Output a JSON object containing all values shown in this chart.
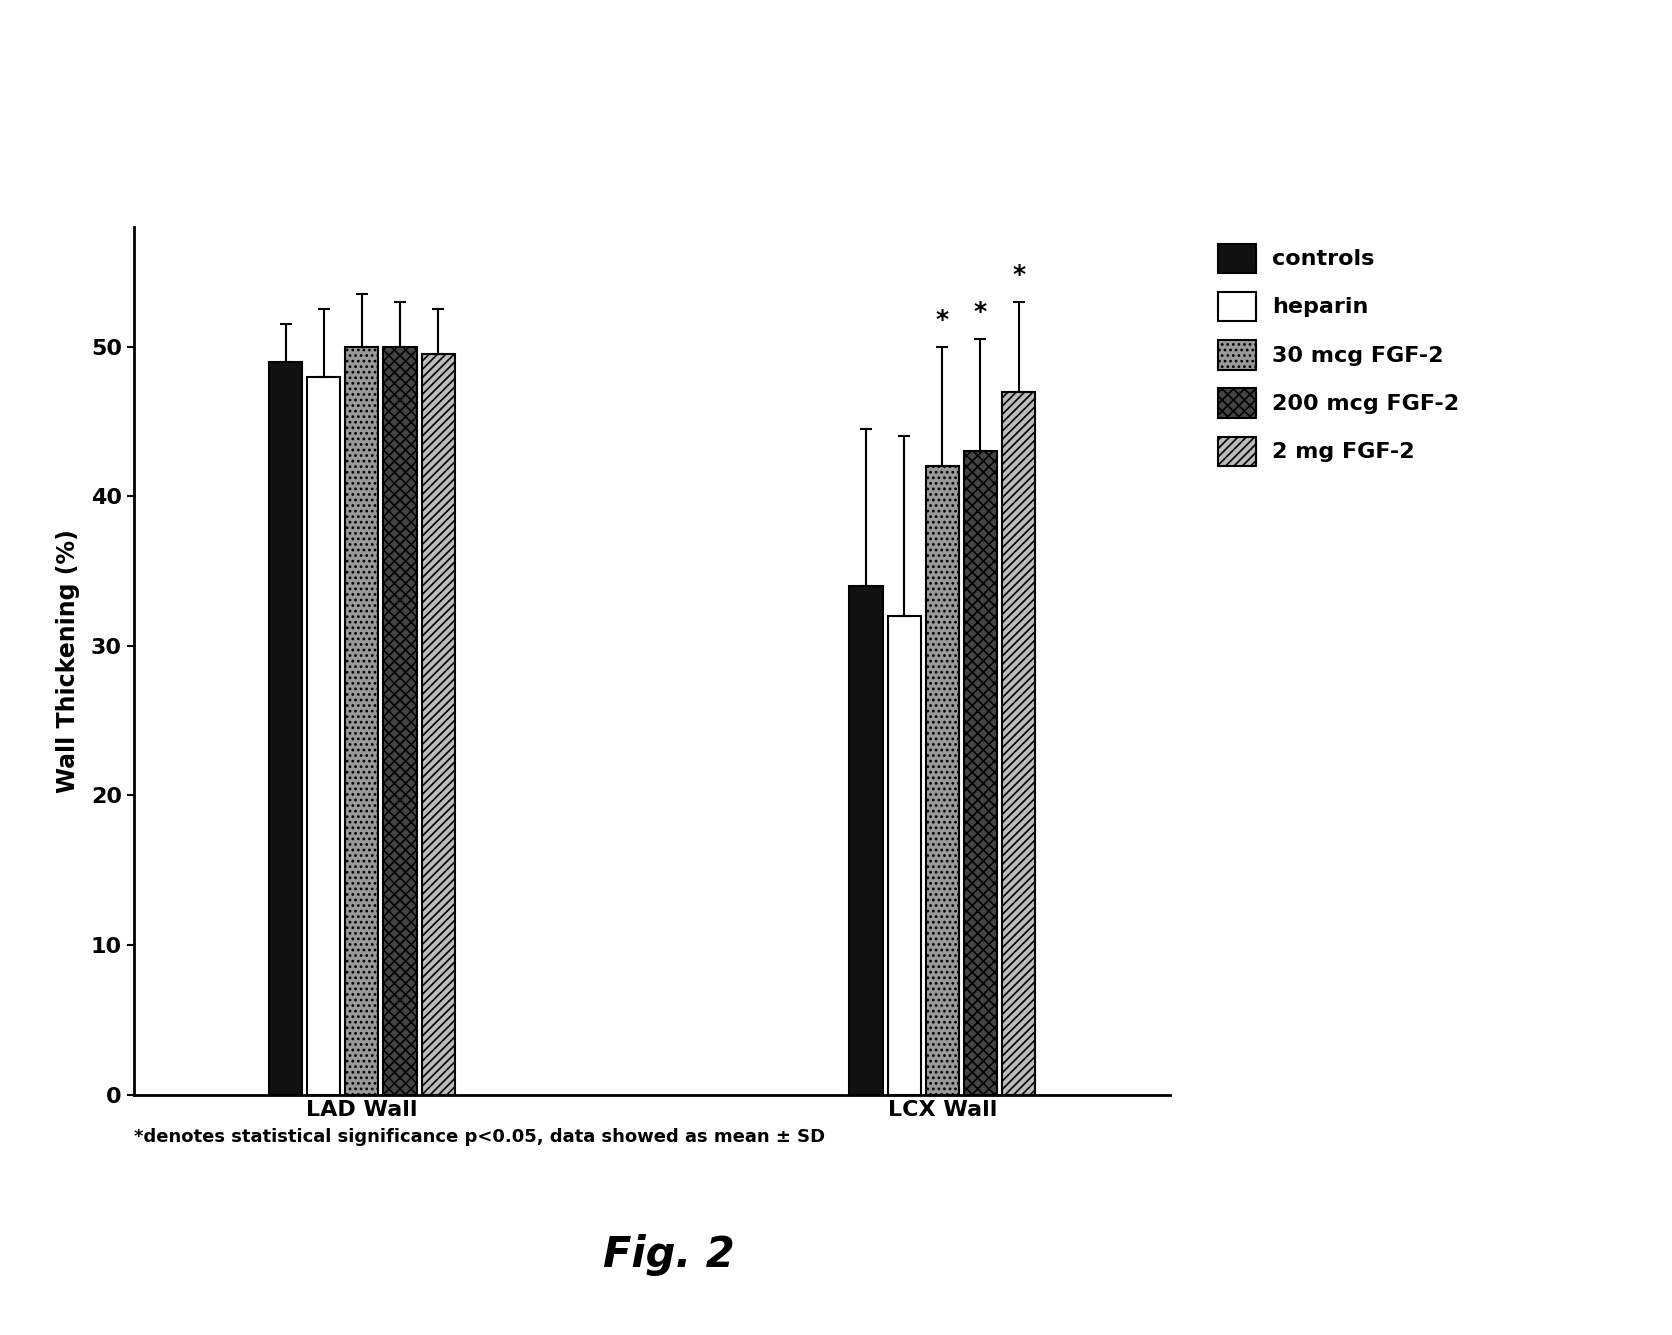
{
  "groups": [
    "LAD Wall",
    "LCX Wall"
  ],
  "series": [
    "controls",
    "heparin",
    "30 mcg FGF-2",
    "200 mcg FGF-2",
    "2 mg FGF-2"
  ],
  "values": {
    "LAD Wall": [
      49.0,
      48.0,
      50.0,
      50.0,
      49.5
    ],
    "LCX Wall": [
      34.0,
      32.0,
      42.0,
      43.0,
      47.0
    ]
  },
  "errors": {
    "LAD Wall": [
      2.5,
      4.5,
      3.5,
      3.0,
      3.0
    ],
    "LCX Wall": [
      10.5,
      12.0,
      8.0,
      7.5,
      6.0
    ]
  },
  "significance": {
    "LAD Wall": [
      false,
      false,
      false,
      false,
      false
    ],
    "LCX Wall": [
      false,
      false,
      true,
      true,
      true
    ]
  },
  "ylabel": "Wall Thickening (%)",
  "ylim": [
    0,
    58
  ],
  "yticks": [
    0,
    10,
    20,
    30,
    40,
    50
  ],
  "footnote": "*denotes statistical significance p<0.05, data showed as mean ± SD",
  "figure_label": "Fig. 2",
  "background_color": "#ffffff"
}
